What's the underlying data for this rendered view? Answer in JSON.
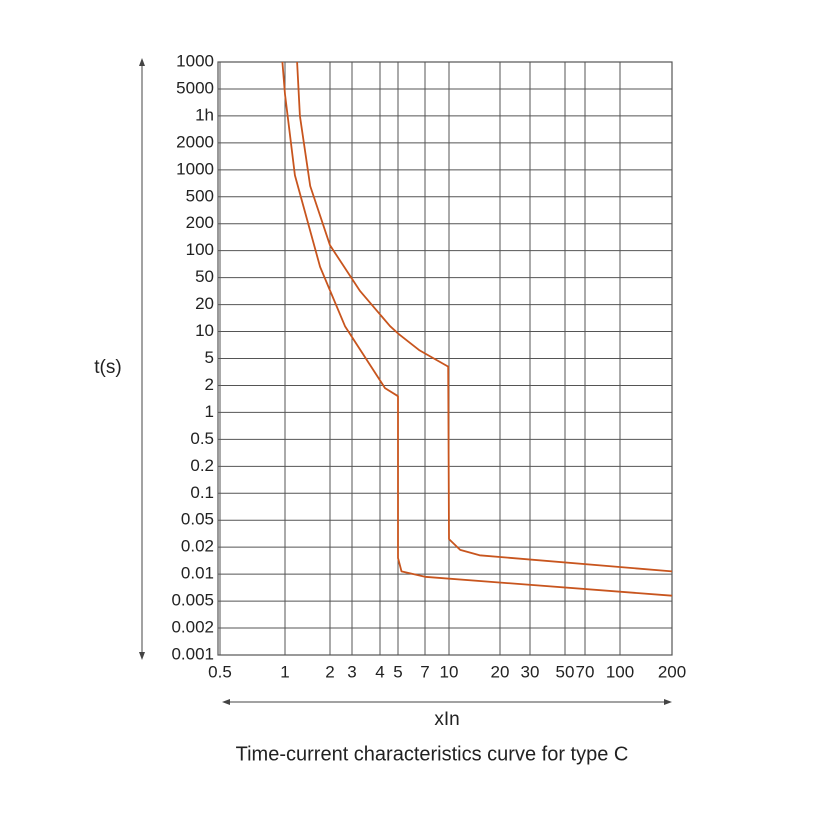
{
  "chart_data": {
    "type": "line",
    "title": "Time-current characteristics curve for type C",
    "xlabel": "xIn",
    "ylabel": "t(s)",
    "xticks": [
      0.5,
      1,
      2,
      3,
      4,
      5,
      7,
      10,
      20,
      30,
      50,
      70,
      100,
      200
    ],
    "xlim": [
      0.5,
      200
    ],
    "ylim": [
      0,
      22
    ],
    "yticks": [
      {
        "value": 0,
        "label": "0.001"
      },
      {
        "value": 1,
        "label": "0.002"
      },
      {
        "value": 2,
        "label": "0.005"
      },
      {
        "value": 3,
        "label": "0.01"
      },
      {
        "value": 4,
        "label": "0.02"
      },
      {
        "value": 5,
        "label": "0.05"
      },
      {
        "value": 6,
        "label": "0.1"
      },
      {
        "value": 7,
        "label": "0.2"
      },
      {
        "value": 8,
        "label": "0.5"
      },
      {
        "value": 9,
        "label": "1"
      },
      {
        "value": 10,
        "label": "2"
      },
      {
        "value": 11,
        "label": "5"
      },
      {
        "value": 12,
        "label": "10"
      },
      {
        "value": 13,
        "label": "20"
      },
      {
        "value": 14,
        "label": "50"
      },
      {
        "value": 15,
        "label": "100"
      },
      {
        "value": 16,
        "label": "200"
      },
      {
        "value": 17,
        "label": "500"
      },
      {
        "value": 18,
        "label": "1000"
      },
      {
        "value": 19,
        "label": "2000"
      },
      {
        "value": 20,
        "label": "1h"
      },
      {
        "value": 21,
        "label": "5000"
      },
      {
        "value": 22,
        "label": "1000"
      }
    ],
    "grid": true,
    "series": [
      {
        "color": "#c8551e",
        "x": [
          1.27,
          1.33,
          1.56,
          2,
          3.29,
          4.56,
          5.07,
          6.6,
          9.9,
          10,
          12.2,
          16,
          200
        ],
        "values": [
          22,
          20,
          17.4,
          15.2,
          13.5,
          12.2,
          11.9,
          11.3,
          10.7,
          4.3,
          3.9,
          3.7,
          3.1
        ]
      },
      {
        "color": "#c8551e",
        "x": [
          0.98,
          1,
          1.22,
          1.78,
          2.68,
          4.28,
          5,
          5,
          5.26,
          7,
          200
        ],
        "values": [
          22,
          20.8,
          17.8,
          14.4,
          12.2,
          9.9,
          9.6,
          3.6,
          3.1,
          2.9,
          2.2
        ]
      }
    ]
  }
}
